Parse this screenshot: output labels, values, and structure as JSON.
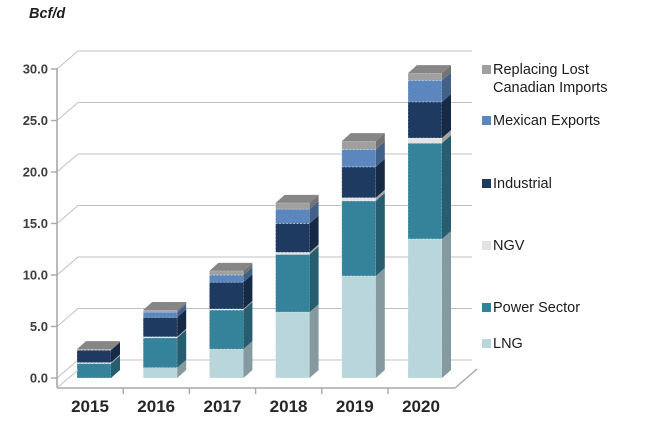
{
  "chart_data": {
    "type": "bar",
    "stacked": true,
    "pseudo_3d": true,
    "title": "",
    "ylabel": "Bcf/d",
    "xlabel": "",
    "categories": [
      "2015",
      "2016",
      "2017",
      "2018",
      "2019",
      "2020"
    ],
    "series": [
      {
        "name": "LNG",
        "color": "#b9d6dc",
        "values": [
          0,
          1.0,
          2.8,
          6.4,
          9.9,
          13.5
        ]
      },
      {
        "name": "Power Sector",
        "color": "#35839a",
        "values": [
          1.4,
          2.9,
          3.8,
          5.6,
          7.3,
          9.3
        ]
      },
      {
        "name": "NGV",
        "color": "#e3e3e3",
        "values": [
          0.1,
          0.1,
          0.1,
          0.2,
          0.3,
          0.5
        ]
      },
      {
        "name": "Industrial",
        "color": "#1f3a60",
        "values": [
          1.2,
          1.9,
          2.6,
          2.8,
          3.0,
          3.5
        ]
      },
      {
        "name": "Mexican Exports",
        "color": "#5b87be",
        "values": [
          0,
          0.5,
          0.7,
          1.4,
          1.7,
          2.1
        ]
      },
      {
        "name": "Replacing Lost Canadian Imports",
        "color": "#a0a0a0",
        "values": [
          0.1,
          0.2,
          0.4,
          0.6,
          0.8,
          0.7
        ]
      }
    ],
    "totals": [
      2.8,
      6.6,
      10.4,
      17.0,
      23.0,
      29.6
    ],
    "y_ticks": [
      "30.0",
      "25.0",
      "20.0",
      "15.0",
      "10.0",
      "5.0",
      "0.0"
    ],
    "ylim": [
      0,
      30
    ],
    "grid": true,
    "legend_position": "right",
    "legend_order_top_to_bottom": [
      "Replacing Lost Canadian Imports",
      "Mexican Exports",
      "Industrial",
      "NGV",
      "Power Sector",
      "LNG"
    ]
  }
}
